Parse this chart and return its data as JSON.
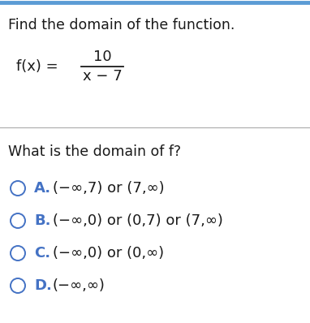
{
  "bg_color": "#ffffff",
  "top_border_color": "#5b9bd5",
  "separator_color": "#aaaaaa",
  "title": "Find the domain of the function.",
  "function_label": "f(x) =",
  "numerator": "10",
  "denominator": "x − 7",
  "question": "What is the domain of f?",
  "options": [
    {
      "letter": "A.",
      "text": "(−∞,7) or (7,∞)"
    },
    {
      "letter": "B.",
      "text": "(−∞,0) or (0,7) or (7,∞)"
    },
    {
      "letter": "C.",
      "text": "(−∞,0) or (0,∞)"
    },
    {
      "letter": "D.",
      "text": "(−∞,∞)"
    }
  ],
  "circle_color": "#4472c4",
  "letter_color": "#4472c4",
  "text_color": "#1a1a1a",
  "title_fontsize": 12.5,
  "body_fontsize": 13,
  "option_fontsize": 13,
  "top_border_color2": "#4472c4"
}
